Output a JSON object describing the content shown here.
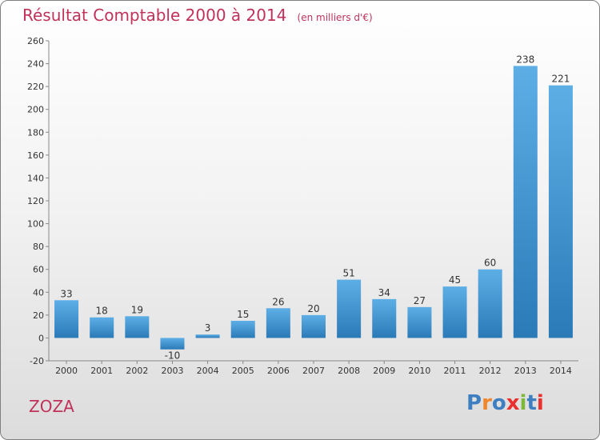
{
  "chart_data": {
    "type": "bar",
    "title": "Résultat Comptable 2000 à 2014",
    "subtitle": "(en milliers d'€)",
    "categories": [
      "2000",
      "2001",
      "2002",
      "2003",
      "2004",
      "2005",
      "2006",
      "2007",
      "2008",
      "2009",
      "2010",
      "2011",
      "2012",
      "2013",
      "2014"
    ],
    "values": [
      33,
      18,
      19,
      -10,
      3,
      15,
      26,
      20,
      51,
      34,
      27,
      45,
      60,
      238,
      221
    ],
    "value_labels": [
      "33",
      "18",
      "19",
      "-10",
      "3",
      "15",
      "26",
      "20",
      "51",
      "34",
      "27",
      "45",
      "60",
      "238",
      "221"
    ],
    "ylim": [
      -20,
      260
    ],
    "yticks": [
      "-20",
      "0",
      "20",
      "40",
      "60",
      "80",
      "100",
      "120",
      "140",
      "160",
      "180",
      "200",
      "220",
      "240",
      "260"
    ],
    "grid": false,
    "xlabel": "",
    "ylabel": ""
  },
  "footer": {
    "commune": "ZOZA",
    "logo_letters": [
      "P",
      "r",
      "o",
      "x",
      "i",
      "t",
      "i"
    ]
  },
  "colors": {
    "title": "#c0325a",
    "bar_light": "#5eaee6",
    "bar_dark": "#2a7ab8",
    "axis": "#888888",
    "logo": [
      "#3d7fc1",
      "#f0862b",
      "#3d7fc1",
      "#e8312f",
      "#7cb83a",
      "#3d7fc1",
      "#e8312f"
    ]
  }
}
